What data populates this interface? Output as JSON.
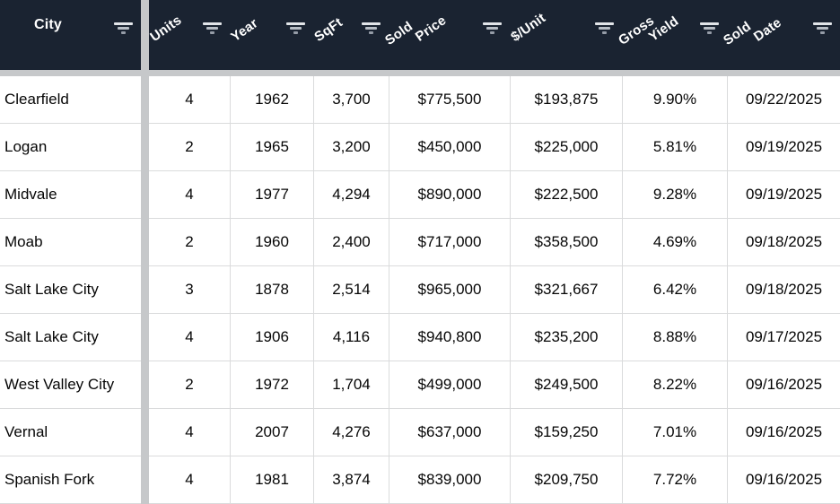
{
  "table": {
    "header": {
      "columns": [
        {
          "id": "city",
          "lines": [
            "City"
          ]
        },
        {
          "id": "units",
          "lines": [
            "Units"
          ]
        },
        {
          "id": "year",
          "lines": [
            "Year"
          ]
        },
        {
          "id": "sqft",
          "lines": [
            "SqFt"
          ]
        },
        {
          "id": "sold_price",
          "lines": [
            "Sold",
            "Price"
          ]
        },
        {
          "id": "per_unit",
          "lines": [
            "$/Unit"
          ]
        },
        {
          "id": "gross_yield",
          "lines": [
            "Gross",
            "Yield"
          ]
        },
        {
          "id": "sold_date",
          "lines": [
            "Sold",
            "Date"
          ]
        }
      ]
    },
    "rows": [
      {
        "city": "Clearfield",
        "units": "4",
        "year": "1962",
        "sqft": "3,700",
        "sold_price": "$775,500",
        "per_unit": "$193,875",
        "gross_yield": "9.90%",
        "sold_date": "09/22/2025"
      },
      {
        "city": "Logan",
        "units": "2",
        "year": "1965",
        "sqft": "3,200",
        "sold_price": "$450,000",
        "per_unit": "$225,000",
        "gross_yield": "5.81%",
        "sold_date": "09/19/2025"
      },
      {
        "city": "Midvale",
        "units": "4",
        "year": "1977",
        "sqft": "4,294",
        "sold_price": "$890,000",
        "per_unit": "$222,500",
        "gross_yield": "9.28%",
        "sold_date": "09/19/2025"
      },
      {
        "city": "Moab",
        "units": "2",
        "year": "1960",
        "sqft": "2,400",
        "sold_price": "$717,000",
        "per_unit": "$358,500",
        "gross_yield": "4.69%",
        "sold_date": "09/18/2025"
      },
      {
        "city": "Salt Lake City",
        "units": "3",
        "year": "1878",
        "sqft": "2,514",
        "sold_price": "$965,000",
        "per_unit": "$321,667",
        "gross_yield": "6.42%",
        "sold_date": "09/18/2025"
      },
      {
        "city": "Salt Lake City",
        "units": "4",
        "year": "1906",
        "sqft": "4,116",
        "sold_price": "$940,800",
        "per_unit": "$235,200",
        "gross_yield": "8.88%",
        "sold_date": "09/17/2025"
      },
      {
        "city": "West Valley City",
        "units": "2",
        "year": "1972",
        "sqft": "1,704",
        "sold_price": "$499,000",
        "per_unit": "$249,500",
        "gross_yield": "8.22%",
        "sold_date": "09/16/2025"
      },
      {
        "city": "Vernal",
        "units": "4",
        "year": "2007",
        "sqft": "4,276",
        "sold_price": "$637,000",
        "per_unit": "$159,250",
        "gross_yield": "7.01%",
        "sold_date": "09/16/2025"
      },
      {
        "city": "Spanish Fork",
        "units": "4",
        "year": "1981",
        "sqft": "3,874",
        "sold_price": "$839,000",
        "per_unit": "$209,750",
        "gross_yield": "7.72%",
        "sold_date": "09/16/2025"
      }
    ]
  },
  "colors": {
    "header_bg": "#1a2331",
    "header_text": "#ffffff",
    "filter_icon": "#c9ced5",
    "frozen_divider": "#c6c8ca",
    "row_border": "#dadbdc",
    "row_bg": "#ffffff",
    "body_text": "#050505"
  }
}
